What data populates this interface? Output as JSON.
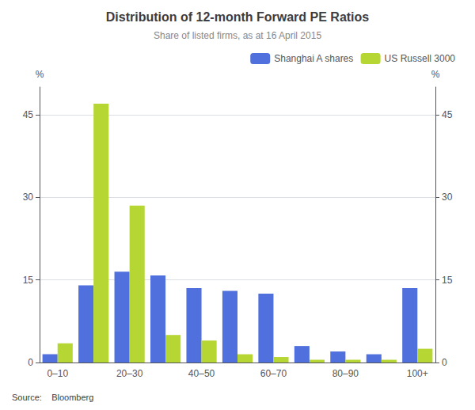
{
  "chart_data": {
    "type": "bar",
    "title": "Distribution of 12-month Forward PE Ratios",
    "subtitle": "Share of listed firms, as at 16 April 2015",
    "source": "Source:    Bloomberg",
    "categories": [
      "0–10",
      null,
      "20–30",
      null,
      "40–50",
      null,
      "60–70",
      null,
      "80–90",
      null,
      "100+"
    ],
    "series": [
      {
        "name": "Shanghai A shares",
        "values": [
          1.5,
          14.0,
          16.5,
          15.8,
          13.5,
          13.0,
          12.5,
          3.0,
          2.0,
          1.5,
          13.5
        ]
      },
      {
        "name": "US Russell 3000",
        "values": [
          3.5,
          47.0,
          28.5,
          5.0,
          4.0,
          1.5,
          1.0,
          0.5,
          0.5,
          0.5,
          2.5
        ]
      }
    ],
    "ylabel": "%",
    "y2label": "%",
    "ylim": [
      0,
      50
    ],
    "yticks": [
      0,
      15,
      30,
      45
    ],
    "y2lim": [
      0,
      50
    ],
    "y2ticks": [
      0,
      15,
      30,
      45
    ],
    "grid": true,
    "legend": "upper right"
  }
}
